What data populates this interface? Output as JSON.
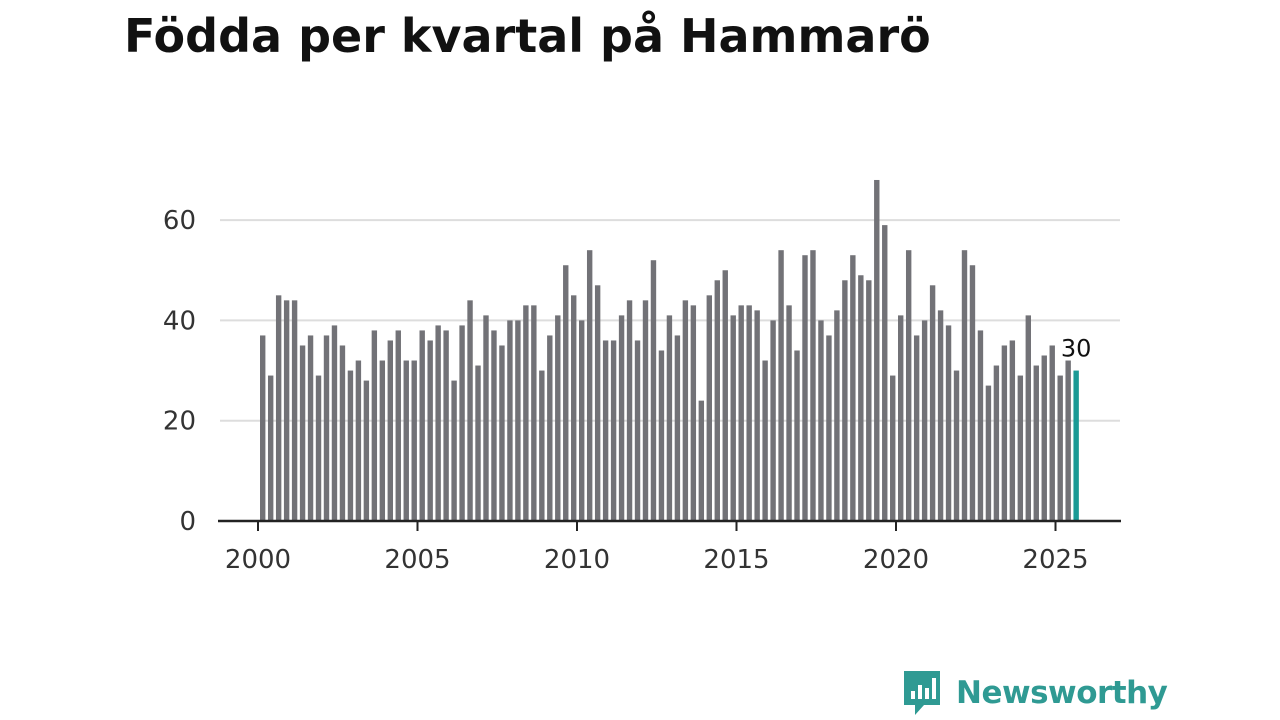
{
  "chart_data": {
    "type": "bar",
    "title": "Födda per kvartal på Hammarö",
    "xlabel": "",
    "ylabel": "",
    "x_start_year": 2000,
    "periods_per_year": 4,
    "values": [
      37,
      29,
      45,
      44,
      44,
      35,
      37,
      29,
      37,
      39,
      35,
      30,
      32,
      28,
      38,
      32,
      36,
      38,
      32,
      32,
      38,
      36,
      39,
      38,
      28,
      39,
      44,
      31,
      41,
      38,
      35,
      40,
      40,
      43,
      43,
      30,
      37,
      41,
      51,
      45,
      40,
      54,
      47,
      36,
      36,
      41,
      44,
      36,
      44,
      52,
      34,
      41,
      37,
      44,
      43,
      24,
      45,
      48,
      50,
      41,
      43,
      43,
      42,
      32,
      40,
      54,
      43,
      34,
      53,
      54,
      40,
      37,
      42,
      48,
      53,
      49,
      48,
      68,
      59,
      29,
      41,
      54,
      37,
      40,
      47,
      42,
      39,
      30,
      54,
      51,
      38,
      27,
      31,
      35,
      36,
      29,
      41,
      31,
      33,
      35,
      29,
      32,
      30
    ],
    "highlight_index": 102,
    "highlight_label": "30",
    "xticks": [
      "2000",
      "2005",
      "2010",
      "2015",
      "2020",
      "2025"
    ],
    "yticks": [
      "0",
      "20",
      "40",
      "60"
    ],
    "ylim": [
      0,
      70
    ],
    "grid": true,
    "colors": {
      "bar": "#727277",
      "highlight": "#1a9a95",
      "grid": "#dddddd",
      "axis": "#222222"
    }
  },
  "branding": {
    "name": "Newsworthy",
    "logo_icon": "newsworthy-logo-icon",
    "color": "#2f9a93"
  }
}
